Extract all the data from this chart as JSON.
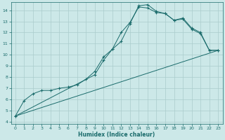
{
  "xlabel": "Humidex (Indice chaleur)",
  "bg_color": "#cce8e8",
  "grid_color": "#aacccc",
  "line_color": "#1a6b6b",
  "xlim": [
    -0.5,
    23.5
  ],
  "ylim": [
    3.8,
    14.7
  ],
  "yticks": [
    4,
    5,
    6,
    7,
    8,
    9,
    10,
    11,
    12,
    13,
    14
  ],
  "xticks": [
    0,
    1,
    2,
    3,
    4,
    5,
    6,
    7,
    8,
    9,
    10,
    11,
    12,
    13,
    14,
    15,
    16,
    17,
    18,
    19,
    20,
    21,
    22,
    23
  ],
  "line1_x": [
    0,
    1,
    2,
    3,
    4,
    5,
    6,
    7,
    8,
    9,
    10,
    11,
    12,
    13,
    14,
    15,
    16,
    17,
    18,
    19,
    20,
    21,
    22,
    23
  ],
  "line1_y": [
    4.5,
    5.9,
    6.5,
    6.8,
    6.8,
    7.0,
    7.1,
    7.3,
    7.8,
    8.5,
    9.8,
    10.5,
    12.0,
    12.9,
    14.3,
    14.2,
    13.8,
    13.7,
    13.1,
    13.2,
    12.3,
    11.9,
    10.4,
    10.4
  ],
  "line2_x": [
    0,
    9,
    10,
    11,
    12,
    13,
    14,
    15,
    16,
    17,
    18,
    19,
    20,
    21,
    22,
    23
  ],
  "line2_y": [
    4.5,
    8.2,
    9.5,
    10.5,
    11.2,
    12.8,
    14.4,
    14.5,
    13.9,
    13.7,
    13.1,
    13.3,
    12.4,
    12.0,
    10.4,
    10.4
  ],
  "line3_x": [
    0,
    23
  ],
  "line3_y": [
    4.5,
    10.4
  ]
}
